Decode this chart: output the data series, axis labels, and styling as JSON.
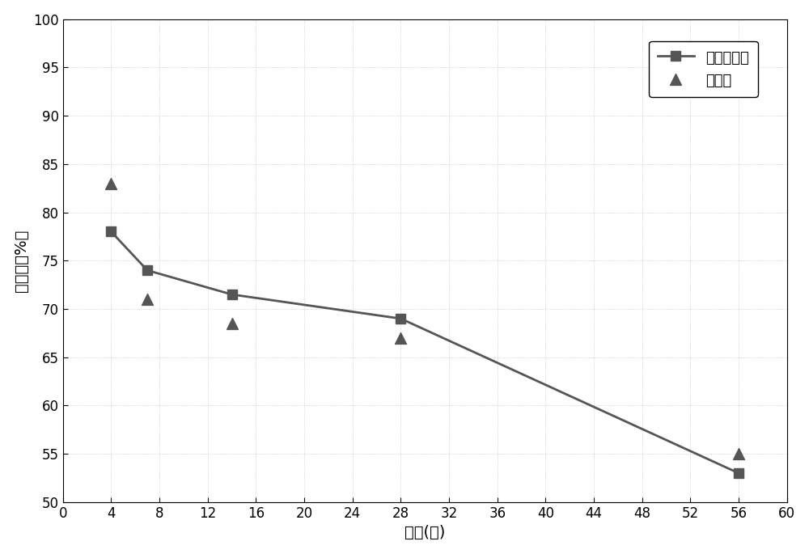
{
  "line1_x": [
    4,
    7,
    14,
    28,
    56
  ],
  "line1_y": [
    78.0,
    74.0,
    71.5,
    69.0,
    53.0
  ],
  "line1_label": "本专利方法",
  "line1_color": "#555555",
  "line1_marker": "s",
  "line1_markersize": 8,
  "line1_linewidth": 2.0,
  "scatter2_x": [
    4,
    7,
    14,
    28,
    56
  ],
  "scatter2_y": [
    83.0,
    71.0,
    68.5,
    67.0,
    55.0
  ],
  "scatter2_label": "称重法",
  "scatter2_color": "#555555",
  "scatter2_marker": "^",
  "scatter2_markersize": 10,
  "xlabel": "龄期(天)",
  "ylabel": "饱和度（%）",
  "xlim": [
    0,
    60
  ],
  "ylim": [
    50,
    100
  ],
  "xticks": [
    0,
    4,
    8,
    12,
    16,
    20,
    24,
    28,
    32,
    36,
    40,
    44,
    48,
    52,
    56,
    60
  ],
  "yticks": [
    50,
    55,
    60,
    65,
    70,
    75,
    80,
    85,
    90,
    95,
    100
  ],
  "background_color": "#ffffff",
  "label_fontsize": 14,
  "tick_fontsize": 12,
  "legend_fontsize": 13
}
